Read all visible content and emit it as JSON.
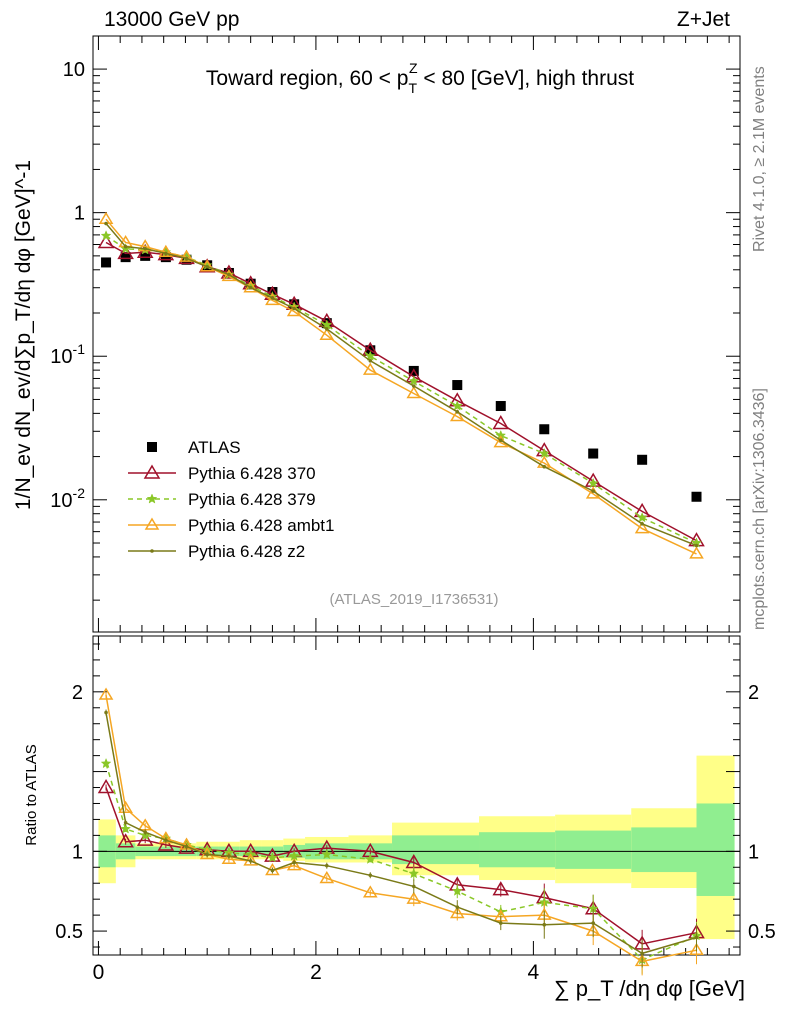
{
  "header": {
    "left": "13000 GeV pp",
    "right": "Z+Jet",
    "title_prefix": "Toward region, 60 < p",
    "title_sup": "Z",
    "title_sub": "T",
    "title_suffix": " < 80 [GeV], high thrust"
  },
  "side_labels": {
    "rivet": "Rivet 4.1.0, ≥ 2.1M events",
    "mcplots": "mcplots.cern.ch [arXiv:1306.3436]"
  },
  "analysis_id": "(ATLAS_2019_I1736531)",
  "y_label_main": "1/N_ev dN_ev/d∑p_T/dη dφ [GeV]^-1",
  "y_label_ratio": "Ratio to ATLAS",
  "x_label": "∑ p_T /dη dφ [GeV]",
  "colors": {
    "atlas": "#000000",
    "p370": "#a0112b",
    "p379": "#8ac727",
    "ambt1": "#f5a623",
    "z2": "#7a7a18",
    "band_inner": "#90ee90",
    "band_outer": "#ffff88"
  },
  "chart_data": [
    {
      "type": "scatter",
      "panel": "main",
      "yscale": "log",
      "xlim": [
        -0.05,
        5.9
      ],
      "ylim": [
        0.0012,
        17
      ],
      "x_ticks": [
        "0",
        "2",
        "4"
      ],
      "y_ticks": [
        "10",
        "1",
        "10^-1",
        "10^-2"
      ],
      "x": [
        0.07,
        0.25,
        0.43,
        0.62,
        0.81,
        1.0,
        1.2,
        1.4,
        1.6,
        1.8,
        2.1,
        2.5,
        2.9,
        3.3,
        3.7,
        4.1,
        4.55,
        5.0,
        5.5
      ],
      "series": [
        {
          "name": "ATLAS",
          "key": "atlas",
          "values": [
            0.45,
            0.49,
            0.5,
            0.49,
            0.47,
            0.43,
            0.38,
            0.32,
            0.28,
            0.23,
            0.17,
            0.11,
            0.079,
            0.063,
            0.045,
            0.031,
            0.021,
            0.019,
            0.0105
          ]
        },
        {
          "name": "Pythia 6.428 370",
          "key": "p370",
          "values": [
            0.62,
            0.52,
            0.53,
            0.51,
            0.48,
            0.42,
            0.38,
            0.32,
            0.27,
            0.23,
            0.175,
            0.11,
            0.072,
            0.049,
            0.034,
            0.022,
            0.0135,
            0.0083,
            0.0052
          ]
        },
        {
          "name": "Pythia 6.428 379",
          "key": "p379",
          "values": [
            0.69,
            0.56,
            0.55,
            0.53,
            0.49,
            0.43,
            0.37,
            0.31,
            0.26,
            0.22,
            0.165,
            0.1,
            0.067,
            0.045,
            0.028,
            0.021,
            0.013,
            0.0075,
            0.005
          ]
        },
        {
          "name": "Pythia 6.428 ambt1",
          "key": "ambt1",
          "values": [
            0.9,
            0.62,
            0.58,
            0.53,
            0.49,
            0.42,
            0.36,
            0.3,
            0.245,
            0.205,
            0.14,
            0.08,
            0.055,
            0.038,
            0.025,
            0.018,
            0.011,
            0.0063,
            0.0042
          ]
        },
        {
          "name": "Pythia 6.428 z2",
          "key": "z2",
          "values": [
            0.84,
            0.58,
            0.56,
            0.52,
            0.48,
            0.42,
            0.37,
            0.3,
            0.255,
            0.215,
            0.155,
            0.093,
            0.062,
            0.041,
            0.026,
            0.017,
            0.0115,
            0.0068,
            0.0048
          ]
        }
      ]
    },
    {
      "type": "line",
      "panel": "ratio",
      "xlim": [
        -0.05,
        5.9
      ],
      "ylim": [
        0.35,
        2.35
      ],
      "x_ticks": [
        "0",
        "2",
        "4"
      ],
      "y_ticks": [
        "2",
        "1",
        "0.5"
      ],
      "bins": [
        0.0,
        0.16,
        0.34,
        0.52,
        0.7,
        0.9,
        1.1,
        1.3,
        1.5,
        1.7,
        1.9,
        2.3,
        2.7,
        3.5,
        4.2,
        4.9,
        5.5,
        5.85
      ],
      "band_inner": [
        [
          0.9,
          1.1
        ],
        [
          0.95,
          1.05
        ],
        [
          0.97,
          1.03
        ],
        [
          0.97,
          1.03
        ],
        [
          0.97,
          1.03
        ],
        [
          0.97,
          1.03
        ],
        [
          0.97,
          1.03
        ],
        [
          0.97,
          1.03
        ],
        [
          0.97,
          1.03
        ],
        [
          0.96,
          1.04
        ],
        [
          0.95,
          1.05
        ],
        [
          0.95,
          1.05
        ],
        [
          0.92,
          1.1
        ],
        [
          0.9,
          1.12
        ],
        [
          0.89,
          1.13
        ],
        [
          0.87,
          1.15
        ],
        [
          0.72,
          1.3
        ]
      ],
      "band_outer": [
        [
          0.8,
          1.2
        ],
        [
          0.9,
          1.1
        ],
        [
          0.95,
          1.05
        ],
        [
          0.95,
          1.05
        ],
        [
          0.95,
          1.05
        ],
        [
          0.95,
          1.06
        ],
        [
          0.95,
          1.06
        ],
        [
          0.95,
          1.07
        ],
        [
          0.95,
          1.07
        ],
        [
          0.94,
          1.08
        ],
        [
          0.93,
          1.09
        ],
        [
          0.93,
          1.1
        ],
        [
          0.85,
          1.18
        ],
        [
          0.82,
          1.22
        ],
        [
          0.8,
          1.23
        ],
        [
          0.77,
          1.27
        ],
        [
          0.45,
          1.6
        ]
      ],
      "x": [
        0.07,
        0.25,
        0.43,
        0.62,
        0.81,
        1.0,
        1.2,
        1.4,
        1.6,
        1.8,
        2.1,
        2.5,
        2.9,
        3.3,
        3.7,
        4.1,
        4.55,
        5.0,
        5.5
      ],
      "series": [
        {
          "name": "Pythia 6.428 370",
          "key": "p370",
          "values": [
            1.4,
            1.06,
            1.07,
            1.04,
            1.02,
            1.01,
            1.0,
            1.0,
            0.97,
            1.0,
            1.02,
            1.0,
            0.93,
            0.79,
            0.76,
            0.71,
            0.64,
            0.42,
            0.49
          ]
        },
        {
          "name": "Pythia 6.428 379",
          "key": "p379",
          "values": [
            1.55,
            1.14,
            1.1,
            1.08,
            1.04,
            1.01,
            0.99,
            0.98,
            0.96,
            0.97,
            0.98,
            0.95,
            0.86,
            0.75,
            0.62,
            0.68,
            0.64,
            0.32,
            0.47
          ]
        },
        {
          "name": "Pythia 6.428 ambt1",
          "key": "ambt1",
          "values": [
            1.98,
            1.27,
            1.16,
            1.08,
            1.04,
            0.98,
            0.95,
            0.94,
            0.88,
            0.91,
            0.83,
            0.74,
            0.7,
            0.61,
            0.59,
            0.6,
            0.5,
            0.31,
            0.38
          ]
        },
        {
          "name": "Pythia 6.428 z2",
          "key": "z2",
          "values": [
            1.87,
            1.18,
            1.12,
            1.07,
            1.03,
            0.98,
            0.97,
            0.94,
            0.88,
            0.93,
            0.91,
            0.85,
            0.78,
            0.65,
            0.55,
            0.54,
            0.55,
            0.36,
            0.46
          ]
        }
      ]
    }
  ]
}
